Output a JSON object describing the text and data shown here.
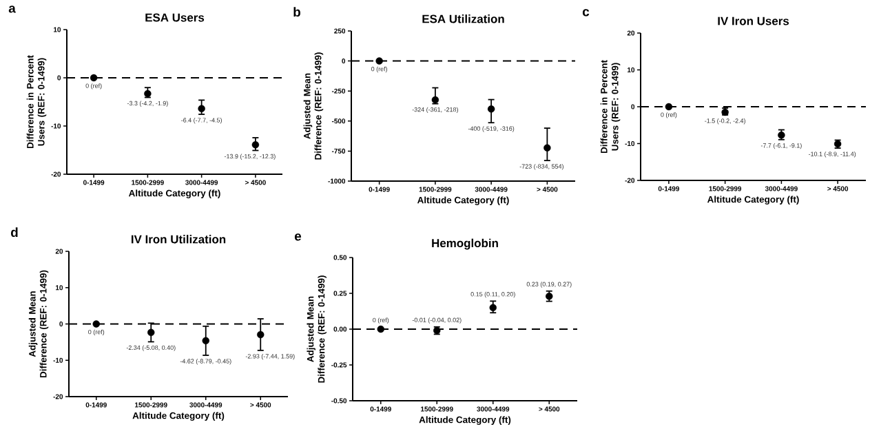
{
  "chart_data": [
    {
      "type": "scatter",
      "title": "ESA Users",
      "xlabel": "Altitude Category (ft)",
      "ylabel": "Difference in Percent Users (REF: 0-1499)",
      "annotations": [
        "a"
      ],
      "categories": [
        "0-1499",
        "1500-2999",
        "3000-4499",
        "> 4500"
      ],
      "values": [
        0,
        -3.3,
        -6.4,
        -13.9
      ],
      "errors": [
        null,
        [
          -4.2,
          -1.9
        ],
        [
          -7.7,
          -4.5
        ],
        [
          -15.2,
          -12.3
        ]
      ],
      "value_labels": [
        "0 (ref)",
        "-3.3 (-4.2, -1.9)",
        "-6.4 (-7.7, -4.5)",
        "-13.9 (-15.2, -12.3)"
      ],
      "color": "#000000",
      "marker": "circle",
      "ylim": [
        -20,
        10
      ],
      "yticks": [
        -20,
        -10,
        0,
        10
      ],
      "ref_lines": [
        {
          "axis": "y",
          "value": 0,
          "line_style": "dashed",
          "color": "#000000"
        }
      ]
    },
    {
      "type": "scatter",
      "title": "ESA Utilization",
      "xlabel": "Altitude Category (ft)",
      "ylabel": "Adjusted Mean Difference (REF: 0-1499)",
      "annotations": [
        "b"
      ],
      "categories": [
        "0-1499",
        "1500-2999",
        "3000-4499",
        "> 4500"
      ],
      "values": [
        0,
        -324,
        -400,
        -723
      ],
      "errors": [
        null,
        [
          -361,
          -218
        ],
        [
          -519,
          -316
        ],
        [
          -834,
          -554
        ]
      ],
      "value_labels": [
        "0 (ref)",
        "-324 (-361, -218)",
        "-400 (-519, -316)",
        "-723 (-834, 554)"
      ],
      "color": "#000000",
      "marker": "circle",
      "ylim": [
        -1000,
        250
      ],
      "yticks": [
        -1000,
        -750,
        -500,
        -250,
        0,
        250
      ],
      "ref_lines": [
        {
          "axis": "y",
          "value": 0,
          "line_style": "dashed",
          "color": "#000000"
        }
      ]
    },
    {
      "type": "scatter",
      "title": "IV Iron Users",
      "xlabel": "Altitude Category (ft)",
      "ylabel": "Difference in Percent Users (REF: 0-1499)",
      "annotations": [
        "c"
      ],
      "categories": [
        "0-1499",
        "1500-2999",
        "3000-4499",
        "> 4500"
      ],
      "values": [
        0,
        -1.5,
        -7.7,
        -10.1
      ],
      "errors": [
        null,
        [
          -2.4,
          -0.2
        ],
        [
          -9.1,
          -6.1
        ],
        [
          -11.4,
          -8.9
        ]
      ],
      "value_labels": [
        "0 (ref)",
        "-1.5 (-0.2, -2.4)",
        "-7.7 (-6.1, -9.1)",
        "-10.1 (-8.9, -11.4)"
      ],
      "color": "#000000",
      "marker": "circle",
      "ylim": [
        -20,
        20
      ],
      "yticks": [
        -20,
        -10,
        0,
        10,
        20
      ],
      "ref_lines": [
        {
          "axis": "y",
          "value": 0,
          "line_style": "dashed",
          "color": "#000000"
        }
      ]
    },
    {
      "type": "scatter",
      "title": "IV Iron Utilization",
      "xlabel": "Altitude Category (ft)",
      "ylabel": "Adjusted Mean Difference (REF: 0-1499)",
      "annotations": [
        "d"
      ],
      "categories": [
        "0-1499",
        "1500-2999",
        "3000-4499",
        "> 4500"
      ],
      "values": [
        0,
        -2.34,
        -4.62,
        -2.93
      ],
      "errors": [
        null,
        [
          -5.08,
          0.4
        ],
        [
          -8.79,
          -0.45
        ],
        [
          -7.44,
          1.59
        ]
      ],
      "value_labels": [
        "0 (ref)",
        "-2.34 (-5.08, 0.40)",
        "-4.62 (-8.79, -0.45)",
        "-2.93 (-7.44, 1.59)"
      ],
      "color": "#000000",
      "marker": "circle",
      "ylim": [
        -20,
        20
      ],
      "yticks": [
        -20,
        -10,
        0,
        10,
        20
      ],
      "ref_lines": [
        {
          "axis": "y",
          "value": 0,
          "line_style": "dashed",
          "color": "#000000"
        }
      ]
    },
    {
      "type": "scatter",
      "title": "Hemoglobin",
      "xlabel": "Altitude Category (ft)",
      "ylabel": "Adjusted Mean Difference (REF: 0-1499)",
      "annotations": [
        "e"
      ],
      "categories": [
        "0-1499",
        "1500-2999",
        "3000-4499",
        "> 4500"
      ],
      "values": [
        0,
        -0.01,
        0.15,
        0.23
      ],
      "errors": [
        null,
        [
          -0.04,
          0.02
        ],
        [
          0.11,
          0.2
        ],
        [
          0.19,
          0.27
        ]
      ],
      "value_labels": [
        "0 (ref)",
        "-0.01 (-0.04, 0.02)",
        "0.15 (0.11, 0.20)",
        "0.23 (0.19, 0.27)"
      ],
      "color": "#000000",
      "marker": "circle",
      "ylim": [
        -0.5,
        0.5
      ],
      "yticks": [
        {
          "value": -0.5,
          "label": "-0.50"
        },
        {
          "value": -0.25,
          "label": "-0.25"
        },
        {
          "value": 0,
          "label": "0.00"
        },
        {
          "value": 0.25,
          "label": "0.25"
        },
        {
          "value": 0.5,
          "label": "0.50"
        }
      ],
      "ref_lines": [
        {
          "axis": "y",
          "value": 0,
          "line_style": "dashed",
          "color": "#000000"
        }
      ]
    }
  ]
}
